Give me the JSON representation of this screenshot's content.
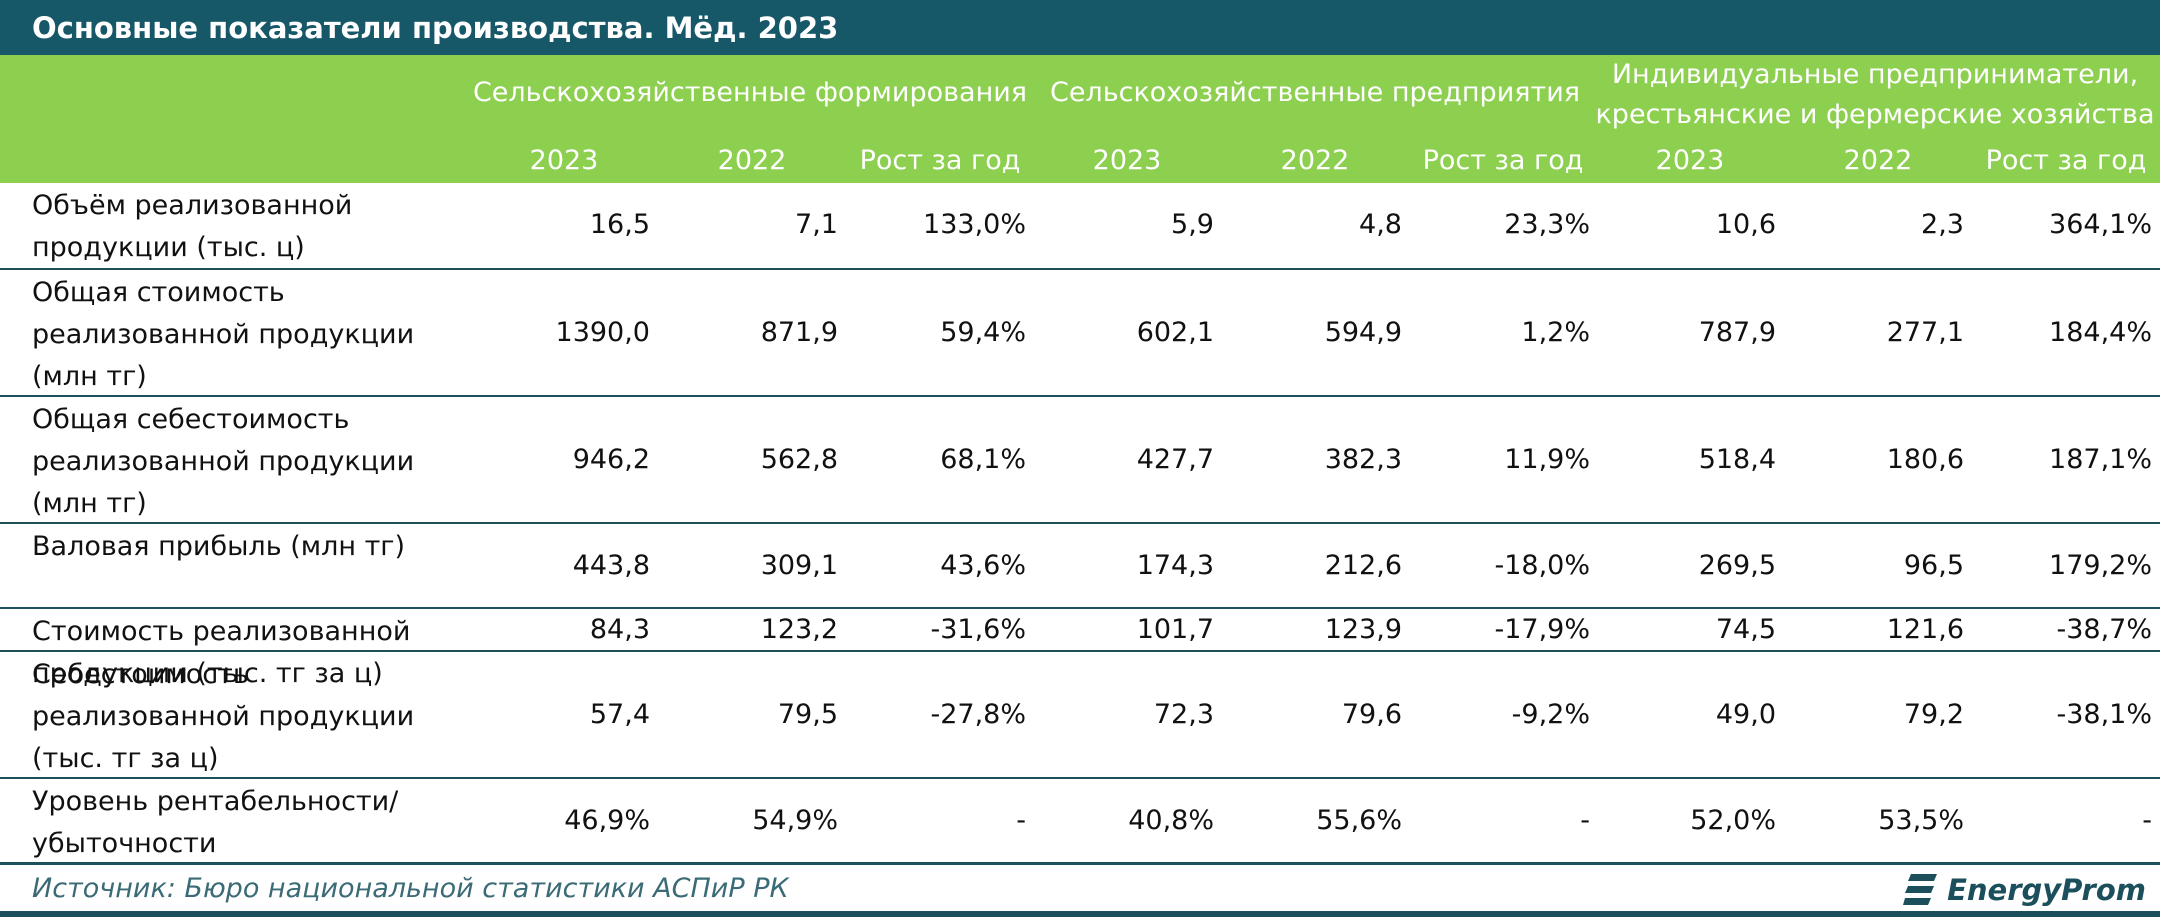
{
  "title": "Основные показатели производства. Мёд. 2023",
  "groups": [
    {
      "label_lines": [
        "Сельскохозяйственные формирования"
      ]
    },
    {
      "label_lines": [
        "Сельскохозяйственные предприятия"
      ]
    },
    {
      "label_lines": [
        "Индивидуальные предприниматели,",
        "крестьянские и фермерские хозяйства"
      ]
    }
  ],
  "subheaders": [
    "2023",
    "2022",
    "Рост за год",
    "2023",
    "2022",
    "Рост за год",
    "2023",
    "2022",
    "Рост за год"
  ],
  "rows": [
    {
      "label": "Объём реализованной продукции (тыс. ц)",
      "values": [
        "16,5",
        "7,1",
        "133,0%",
        "5,9",
        "4,8",
        "23,3%",
        "10,6",
        "2,3",
        "364,1%"
      ]
    },
    {
      "label": "Общая стоимость реализованной продукции (млн тг)",
      "values": [
        "1390,0",
        "871,9",
        "59,4%",
        "602,1",
        "594,9",
        "1,2%",
        "787,9",
        "277,1",
        "184,4%"
      ]
    },
    {
      "label": "Общая себестоимость реализованной продукции (млн тг)",
      "values": [
        "946,2",
        "562,8",
        "68,1%",
        "427,7",
        "382,3",
        "11,9%",
        "518,4",
        "180,6",
        "187,1%"
      ]
    },
    {
      "label": "Валовая прибыль (млн тг)",
      "values": [
        "443,8",
        "309,1",
        "43,6%",
        "174,3",
        "212,6",
        "-18,0%",
        "269,5",
        "96,5",
        "179,2%"
      ]
    },
    {
      "label": "Стоимость реализованной продукции (тыс. тг за ц)",
      "values": [
        "84,3",
        "123,2",
        "-31,6%",
        "101,7",
        "123,9",
        "-17,9%",
        "74,5",
        "121,6",
        "-38,7%"
      ]
    },
    {
      "label": "Себестоимость реализованной продукции (тыс. тг за ц)",
      "values": [
        "57,4",
        "79,5",
        "-27,8%",
        "72,3",
        "79,6",
        "-9,2%",
        "49,0",
        "79,2",
        "-38,1%"
      ]
    },
    {
      "label": "Уровень рентабельности/убыточности",
      "values": [
        "46,9%",
        "54,9%",
        "-",
        "40,8%",
        "55,6%",
        "-",
        "52,0%",
        "53,5%",
        "-"
      ]
    }
  ],
  "source": "Источник: Бюро национальной статистики АСПиР РК",
  "brand": {
    "name": "EnergyProm",
    "logo_icon": "energyprom-logo-icon"
  },
  "colors": {
    "title_bg": "#175868",
    "header_bg": "#8dcf4f",
    "rule": "#1c4f5c"
  }
}
